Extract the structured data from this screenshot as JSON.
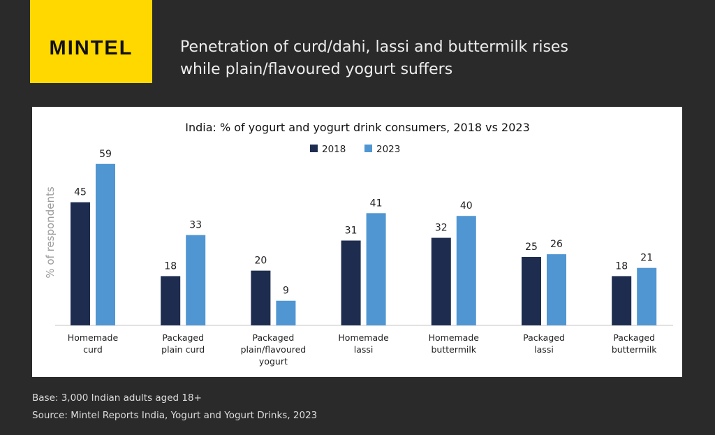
{
  "brand": {
    "logo_text": "MINTEL",
    "logo_color": "#ffd800"
  },
  "headline": {
    "line1": "Penetration of curd/dahi, lassi and buttermilk rises",
    "line2": "while plain/flavoured yogurt suffers"
  },
  "footer": {
    "base": "Base: 3,000 Indian adults aged 18+",
    "source": "Source: Mintel Reports India, Yogurt and Yogurt Drinks, 2023"
  },
  "chart_data": {
    "type": "bar",
    "title": "India: % of yogurt and yogurt drink consumers, 2018 vs 2023",
    "xlabel": "",
    "ylabel": "% of respondents",
    "ylim": [
      0,
      62
    ],
    "grid": false,
    "legend_position": "top-center",
    "categories": [
      [
        "Homemade",
        "curd"
      ],
      [
        "Packaged",
        "plain curd"
      ],
      [
        "Packaged",
        "plain/flavoured",
        "yogurt"
      ],
      [
        "Homemade",
        "lassi"
      ],
      [
        "Homemade",
        "buttermilk"
      ],
      [
        "Packaged",
        "lassi"
      ],
      [
        "Packaged",
        "buttermilk"
      ]
    ],
    "series": [
      {
        "name": "2018",
        "color": "#1e2d4f",
        "values": [
          45,
          18,
          20,
          31,
          32,
          25,
          18
        ]
      },
      {
        "name": "2023",
        "color": "#4f96d2",
        "values": [
          59,
          33,
          9,
          41,
          40,
          26,
          21
        ]
      }
    ]
  }
}
